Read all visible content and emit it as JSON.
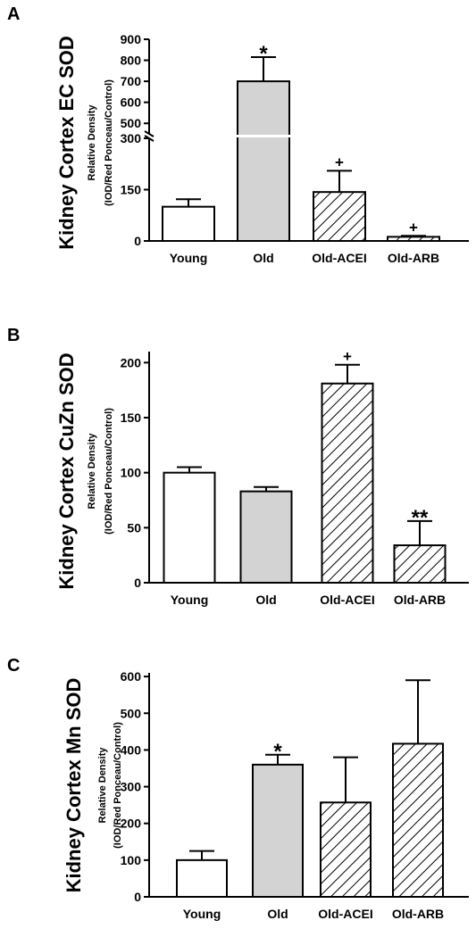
{
  "chart_data": [
    {
      "panel": "A",
      "type": "bar",
      "ylabel": "Kidney Cortex EC SOD",
      "ylabel_sub1": "Relative Density",
      "ylabel_sub2": "(IOD/Red Ponceau/Control)",
      "categories": [
        "Young",
        "Old",
        "Old-ACEI",
        "Old-ARB"
      ],
      "values": [
        100,
        700,
        143,
        12
      ],
      "errors": [
        22,
        115,
        62,
        3
      ],
      "annotations": [
        "",
        "*",
        "+",
        "+"
      ],
      "fills": [
        "white",
        "gray",
        "hatch",
        "hatch"
      ],
      "axis_break": {
        "lower": [
          0,
          300
        ],
        "upper": [
          450,
          900
        ]
      },
      "yticks_lower": [
        0,
        150,
        300
      ],
      "yticks_upper": [
        500,
        600,
        700,
        800,
        900
      ]
    },
    {
      "panel": "B",
      "type": "bar",
      "ylabel": "Kidney Cortex CuZn SOD",
      "ylabel_sub1": "Relative Density",
      "ylabel_sub2": "(IOD/Red Ponceau/Control)",
      "categories": [
        "Young",
        "Old",
        "Old-ACEI",
        "Old-ARB"
      ],
      "values": [
        100,
        83,
        181,
        34
      ],
      "errors": [
        5,
        4,
        17,
        22
      ],
      "annotations": [
        "",
        "",
        "+",
        "**"
      ],
      "fills": [
        "white",
        "gray",
        "hatch",
        "hatch"
      ],
      "ylim": [
        0,
        210
      ],
      "yticks": [
        0,
        50,
        100,
        150,
        200
      ]
    },
    {
      "panel": "C",
      "type": "bar",
      "ylabel": "Kidney Cortex Mn SOD",
      "ylabel_sub1": "Relative Density",
      "ylabel_sub2": "(IOD/Red Ponceau/Control)",
      "categories": [
        "Young",
        "Old",
        "Old-ACEI",
        "Old-ARB"
      ],
      "values": [
        100,
        360,
        257,
        417
      ],
      "errors": [
        25,
        27,
        123,
        173
      ],
      "annotations": [
        "",
        "*",
        "",
        ""
      ],
      "fills": [
        "white",
        "gray",
        "hatch",
        "hatch"
      ],
      "ylim": [
        0,
        610
      ],
      "yticks": [
        0,
        100,
        200,
        300,
        400,
        500,
        600
      ]
    }
  ],
  "colors": {
    "gray": "#d3d3d3",
    "white": "#ffffff",
    "hatch_line": "#000000",
    "axis": "#000000"
  }
}
